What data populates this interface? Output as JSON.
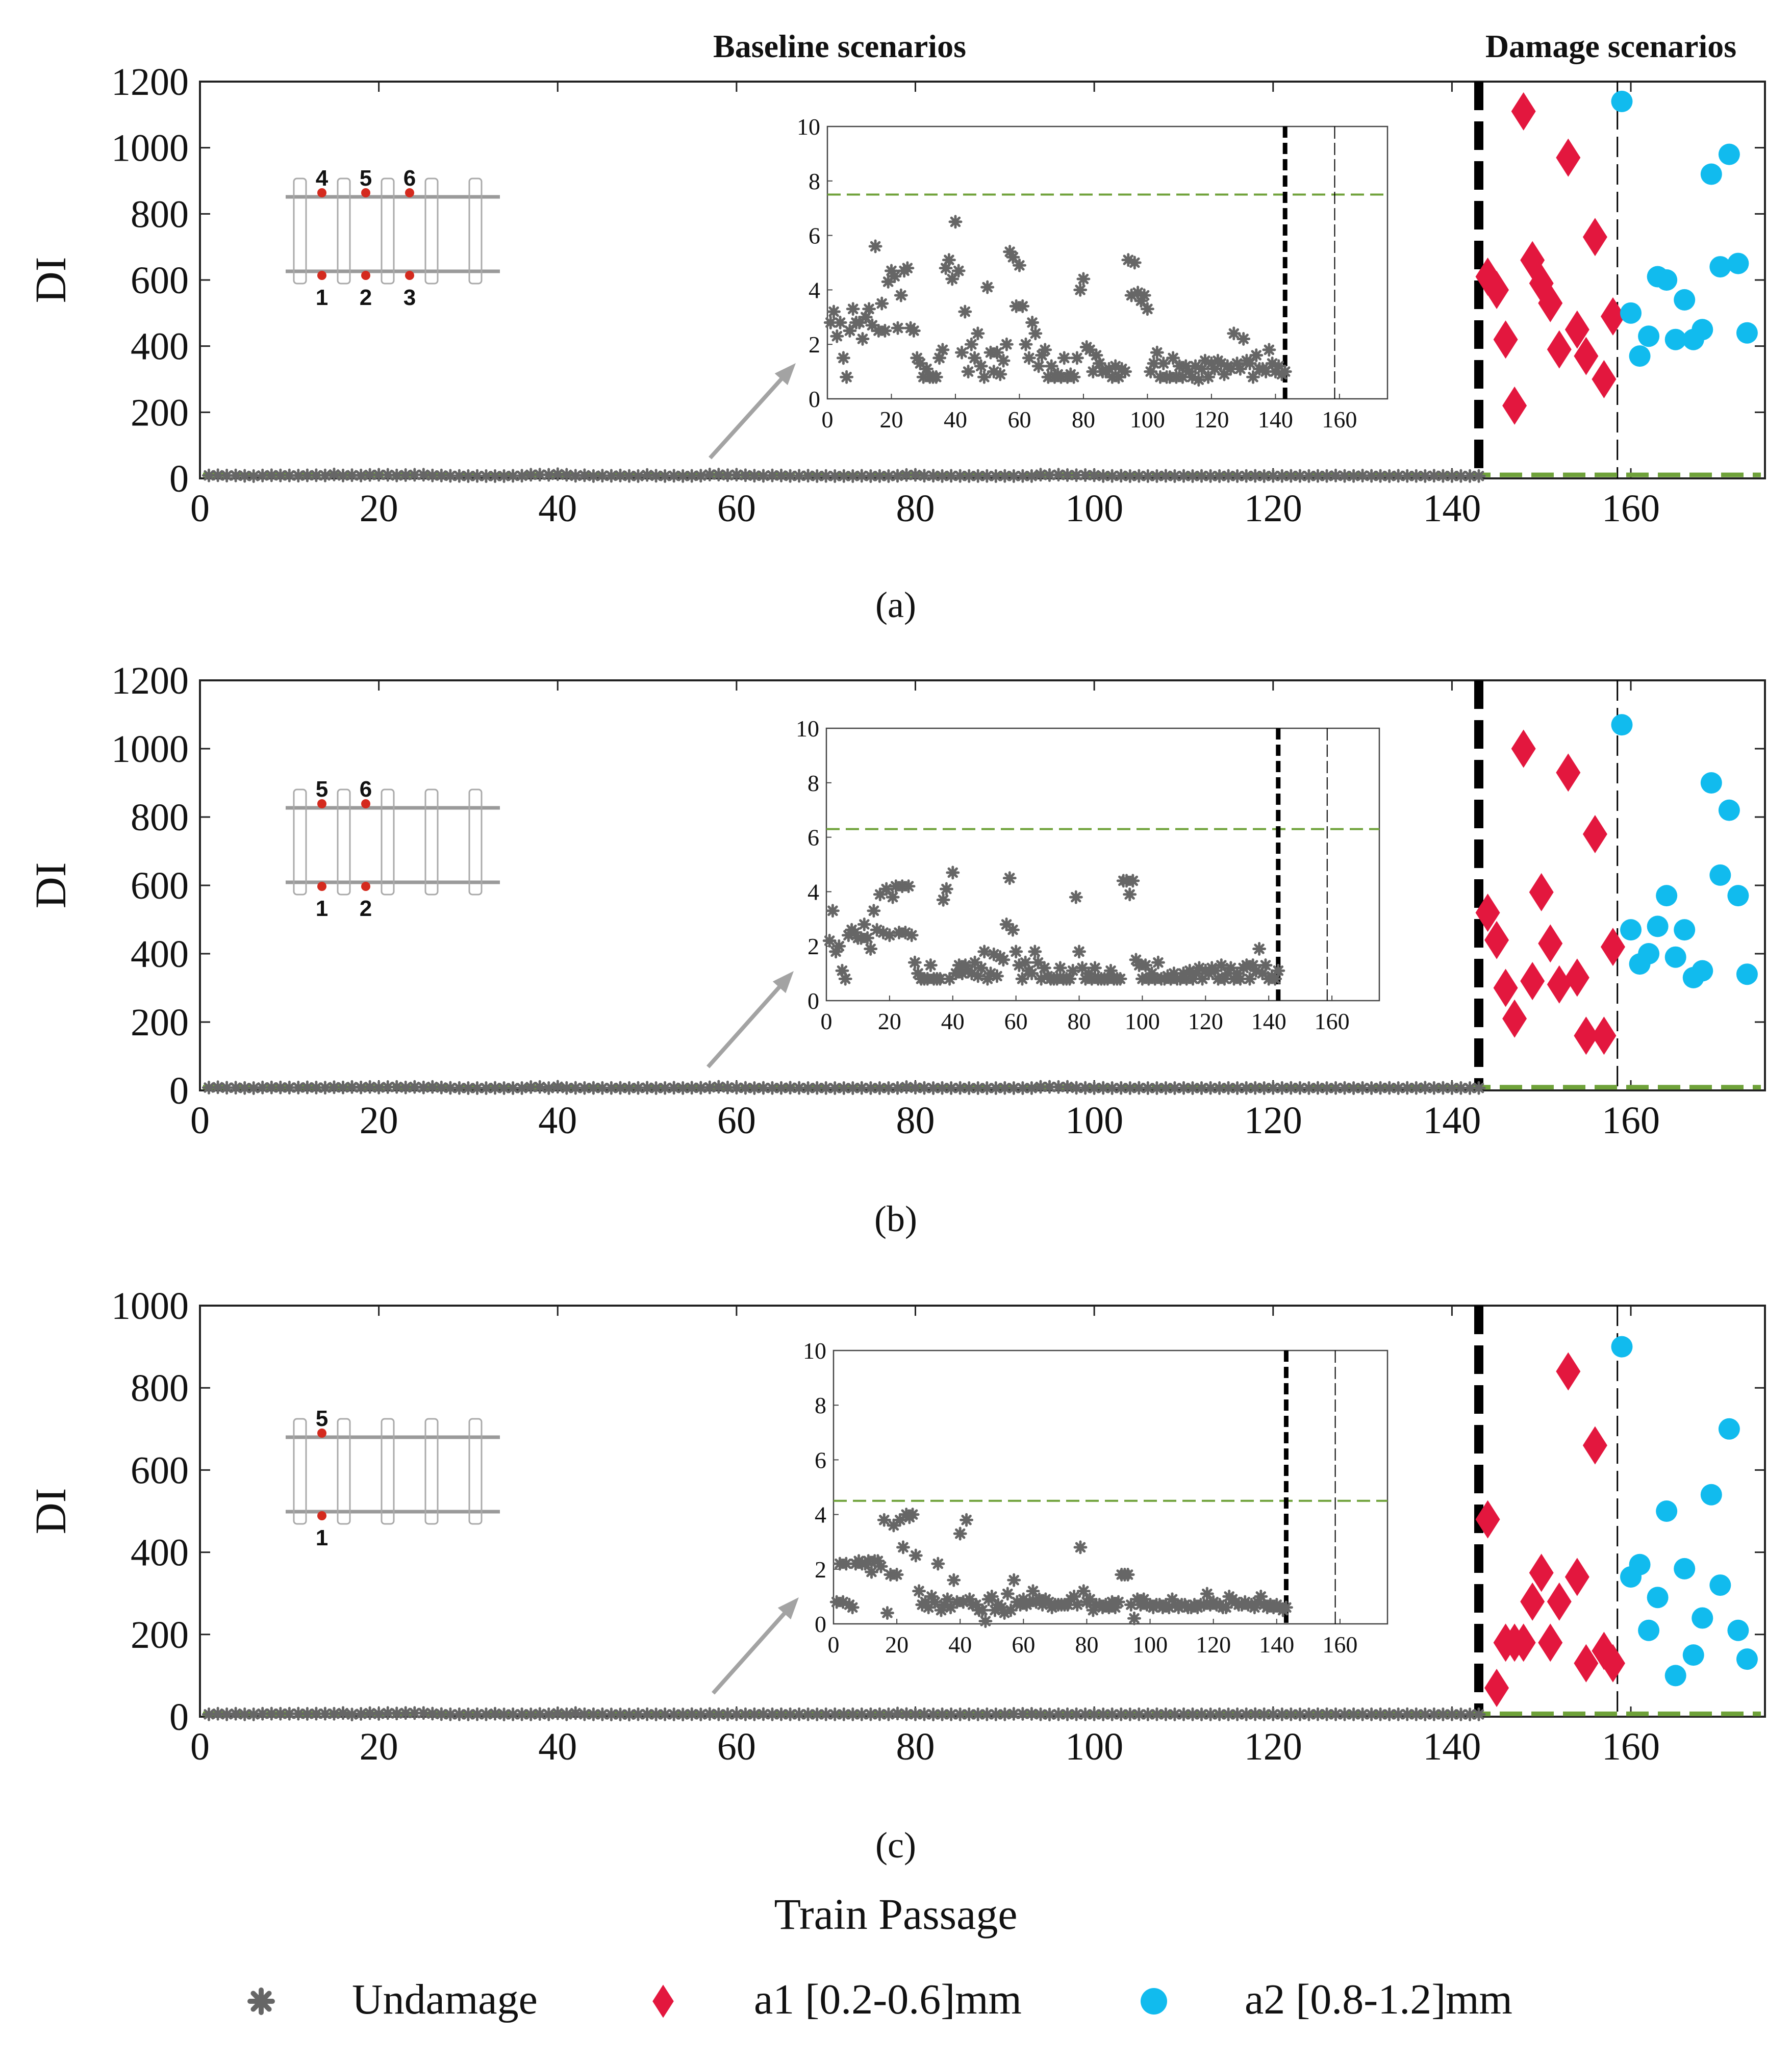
{
  "figure": {
    "header_left": "Baseline scenarios",
    "header_right": "Damage scenarios",
    "x_axis_label": "Train Passage",
    "y_axis_label": "DI",
    "legend": [
      {
        "label": "Undamage",
        "marker": "asterisk",
        "color": "#666666"
      },
      {
        "label": "a1 [0.2-0.6]mm",
        "marker": "diamond",
        "color": "#E3173E"
      },
      {
        "label": "a2 [0.8-1.2]mm",
        "marker": "circle",
        "color": "#11BBEE"
      }
    ],
    "colors": {
      "undamaged": "#666666",
      "a1": "#E3173E",
      "a2": "#11BBEE",
      "threshold": "#6FA23A",
      "arrow": "#A3A3A3"
    }
  },
  "chart_data": [
    {
      "panel": "a",
      "caption": "(a)",
      "type": "scatter",
      "xlabel": "",
      "ylabel": "DI",
      "xlim": [
        0,
        175
      ],
      "ylim": [
        0,
        1200
      ],
      "xticks": [
        0,
        20,
        40,
        60,
        80,
        100,
        120,
        140,
        160
      ],
      "yticks": [
        0,
        200,
        400,
        600,
        800,
        1000,
        1200
      ],
      "threshold": 7.5,
      "vlines": [
        {
          "x": 143,
          "style": "thick-dash"
        },
        {
          "x": 158.5,
          "style": "thin-dash"
        }
      ],
      "schematic_labels": [
        "4",
        "5",
        "6",
        "1",
        "2",
        "3"
      ],
      "undamaged": {
        "x_start": 1,
        "x_end": 143,
        "values": [
          2.8,
          3.2,
          2.3,
          2.8,
          1.5,
          0.8,
          2.5,
          3.3,
          2.8,
          2.8,
          2.2,
          3.0,
          3.3,
          2.7,
          5.6,
          2.5,
          3.5,
          2.5,
          4.3,
          4.7,
          4.5,
          2.6,
          3.8,
          4.7,
          4.8,
          2.6,
          2.5,
          1.5,
          1.3,
          0.8,
          1.1,
          0.8,
          0.8,
          0.8,
          1.5,
          1.8,
          4.8,
          5.1,
          4.4,
          6.5,
          4.7,
          1.7,
          3.2,
          1.0,
          2.0,
          1.5,
          2.4,
          1.2,
          0.8,
          4.1,
          1.7,
          1.0,
          1.7,
          0.9,
          1.4,
          2.0,
          5.4,
          5.2,
          3.4,
          4.9,
          3.4,
          2.0,
          1.5,
          2.8,
          2.4,
          1.2,
          1.6,
          1.8,
          0.8,
          1.2,
          0.8,
          0.9,
          0.8,
          1.5,
          0.8,
          0.9,
          0.8,
          1.5,
          4.0,
          4.4,
          1.9,
          1.8,
          1.0,
          1.6,
          1.3,
          1.0,
          1.0,
          1.1,
          0.8,
          1.2,
          0.8,
          1.1,
          1.0,
          5.1,
          3.8,
          5.0,
          3.9,
          3.6,
          3.8,
          3.3,
          1.0,
          1.3,
          1.7,
          0.8,
          1.3,
          0.8,
          0.8,
          1.5,
          0.8,
          1.2,
          0.8,
          1.2,
          1.0,
          0.8,
          1.2,
          0.7,
          1.1,
          1.4,
          0.8,
          1.3,
          1.1,
          1.4,
          1.3,
          0.9,
          1.2,
          1.1,
          2.4,
          1.3,
          1.1,
          2.2,
          1.4,
          1.3,
          0.8,
          1.6,
          1.1,
          1.1,
          1.0,
          1.8,
          1.3,
          1.0,
          1.2,
          0.9,
          1.0
        ]
      },
      "a1": {
        "x": [
          144,
          145,
          146,
          147,
          148,
          149,
          150,
          151,
          152,
          153,
          154,
          155,
          156,
          157,
          158
        ],
        "y": [
          610,
          570,
          420,
          220,
          1110,
          660,
          590,
          530,
          390,
          970,
          450,
          370,
          730,
          300,
          490
        ]
      },
      "a2": {
        "x": [
          159,
          160,
          161,
          162,
          163,
          164,
          165,
          166,
          167,
          168,
          169,
          170,
          171,
          172,
          173
        ],
        "y": [
          1140,
          500,
          370,
          430,
          610,
          600,
          420,
          540,
          420,
          450,
          920,
          640,
          980,
          650,
          440
        ]
      }
    },
    {
      "panel": "b",
      "caption": "(b)",
      "type": "scatter",
      "xlabel": "",
      "ylabel": "DI",
      "xlim": [
        0,
        175
      ],
      "ylim": [
        0,
        1200
      ],
      "xticks": [
        0,
        20,
        40,
        60,
        80,
        100,
        120,
        140,
        160
      ],
      "yticks": [
        0,
        200,
        400,
        600,
        800,
        1000,
        1200
      ],
      "threshold": 6.3,
      "vlines": [
        {
          "x": 143,
          "style": "thick-dash"
        },
        {
          "x": 158.5,
          "style": "thin-dash"
        }
      ],
      "schematic_labels": [
        "5",
        "6",
        "1",
        "2"
      ],
      "undamaged": {
        "x_start": 1,
        "x_end": 143,
        "values": [
          2.2,
          3.3,
          1.8,
          2.0,
          1.1,
          0.8,
          2.4,
          2.6,
          2.5,
          2.3,
          2.3,
          2.8,
          2.3,
          1.9,
          3.3,
          2.6,
          3.9,
          2.5,
          4.1,
          2.4,
          3.8,
          4.2,
          2.5,
          4.2,
          2.5,
          4.2,
          2.4,
          1.4,
          1.0,
          0.8,
          0.8,
          0.8,
          1.3,
          0.8,
          0.8,
          0.8,
          3.7,
          4.1,
          0.8,
          4.7,
          1.0,
          1.3,
          1.0,
          1.3,
          1.1,
          1.0,
          1.4,
          0.9,
          1.2,
          1.8,
          0.8,
          1.0,
          1.7,
          0.9,
          1.6,
          1.5,
          2.8,
          4.5,
          2.6,
          1.8,
          1.3,
          0.8,
          1.4,
          1.1,
          1.0,
          1.8,
          1.4,
          0.8,
          1.2,
          0.9,
          0.8,
          0.8,
          0.8,
          1.2,
          0.8,
          0.8,
          0.8,
          1.1,
          3.8,
          1.8,
          1.2,
          0.8,
          1.0,
          0.8,
          1.2,
          0.8,
          0.8,
          0.8,
          0.8,
          1.1,
          0.8,
          0.8,
          0.8,
          4.4,
          4.4,
          3.9,
          4.4,
          1.5,
          1.3,
          0.8,
          1.3,
          0.8,
          1.0,
          0.8,
          1.4,
          0.8,
          0.8,
          0.9,
          0.8,
          1.0,
          0.8,
          0.8,
          1.0,
          0.8,
          1.1,
          0.8,
          1.0,
          1.2,
          0.8,
          1.1,
          1.0,
          1.2,
          1.1,
          0.8,
          1.3,
          0.8,
          1.0,
          1.2,
          0.8,
          1.0,
          0.8,
          1.2,
          1.3,
          0.8,
          1.3,
          1.1,
          1.9,
          1.0,
          1.3,
          0.8,
          0.9,
          0.8,
          1.1
        ]
      },
      "a1": {
        "x": [
          144,
          145,
          146,
          147,
          148,
          149,
          150,
          151,
          152,
          153,
          154,
          155,
          156,
          157,
          158
        ],
        "y": [
          520,
          440,
          300,
          210,
          1000,
          320,
          580,
          430,
          310,
          930,
          330,
          160,
          750,
          160,
          420
        ]
      },
      "a2": {
        "x": [
          159,
          160,
          161,
          162,
          163,
          164,
          165,
          166,
          167,
          168,
          169,
          170,
          171,
          172,
          173
        ],
        "y": [
          1070,
          470,
          370,
          400,
          480,
          570,
          390,
          470,
          330,
          350,
          900,
          630,
          820,
          570,
          340
        ]
      }
    },
    {
      "panel": "c",
      "caption": "(c)",
      "type": "scatter",
      "xlabel": "Train Passage",
      "ylabel": "DI",
      "xlim": [
        0,
        175
      ],
      "ylim": [
        0,
        1000
      ],
      "xticks": [
        0,
        20,
        40,
        60,
        80,
        100,
        120,
        140,
        160
      ],
      "yticks": [
        0,
        200,
        400,
        600,
        800,
        1000
      ],
      "threshold": 4.5,
      "vlines": [
        {
          "x": 143,
          "style": "thick-dash"
        },
        {
          "x": 158.5,
          "style": "thin-dash"
        }
      ],
      "schematic_labels": [
        "5",
        "1"
      ],
      "undamaged": {
        "x_start": 1,
        "x_end": 143,
        "values": [
          0.8,
          2.2,
          0.8,
          2.2,
          0.7,
          0.6,
          2.2,
          2.3,
          2.2,
          2.2,
          2.3,
          1.9,
          2.3,
          2.3,
          2.1,
          3.8,
          0.4,
          1.8,
          3.6,
          1.8,
          3.8,
          2.8,
          4.0,
          3.9,
          4.0,
          2.5,
          1.2,
          0.7,
          0.8,
          0.6,
          1.0,
          0.8,
          2.2,
          0.5,
          0.7,
          0.9,
          0.6,
          1.6,
          0.8,
          3.3,
          0.8,
          3.8,
          0.9,
          0.7,
          0.7,
          0.5,
          0.5,
          0.1,
          0.9,
          1.0,
          0.5,
          0.7,
          0.6,
          0.4,
          1.1,
          0.5,
          1.6,
          0.8,
          0.7,
          0.9,
          0.7,
          0.8,
          1.2,
          0.8,
          0.9,
          0.7,
          0.9,
          0.8,
          0.6,
          0.7,
          0.7,
          0.7,
          0.7,
          0.7,
          0.9,
          1.0,
          0.7,
          2.8,
          1.2,
          0.8,
          0.9,
          0.5,
          0.7,
          0.7,
          0.6,
          0.7,
          0.6,
          0.8,
          0.6,
          0.8,
          1.8,
          1.8,
          1.8,
          0.7,
          0.2,
          0.9,
          0.7,
          0.9,
          0.7,
          0.7,
          0.6,
          0.7,
          0.7,
          0.6,
          0.7,
          0.6,
          0.9,
          0.7,
          0.6,
          0.7,
          0.7,
          0.6,
          0.6,
          0.7,
          0.6,
          0.7,
          0.7,
          1.1,
          0.7,
          0.8,
          0.7,
          0.7,
          0.6,
          0.6,
          1.0,
          0.9,
          0.8,
          0.7,
          0.7,
          0.8,
          0.7,
          0.7,
          0.6,
          0.8,
          1.0,
          0.7,
          0.6,
          0.7,
          0.6,
          0.7,
          0.6,
          0.5,
          0.6
        ]
      },
      "a1": {
        "x": [
          144,
          145,
          146,
          147,
          148,
          149,
          150,
          151,
          152,
          153,
          154,
          155,
          156,
          157,
          158
        ],
        "y": [
          480,
          70,
          180,
          180,
          180,
          280,
          350,
          180,
          280,
          840,
          340,
          130,
          660,
          160,
          130
        ]
      },
      "a2": {
        "x": [
          159,
          160,
          161,
          162,
          163,
          164,
          165,
          166,
          167,
          168,
          169,
          170,
          171,
          172,
          173
        ],
        "y": [
          900,
          340,
          370,
          210,
          290,
          500,
          100,
          360,
          150,
          240,
          540,
          320,
          700,
          210,
          140
        ]
      }
    }
  ]
}
